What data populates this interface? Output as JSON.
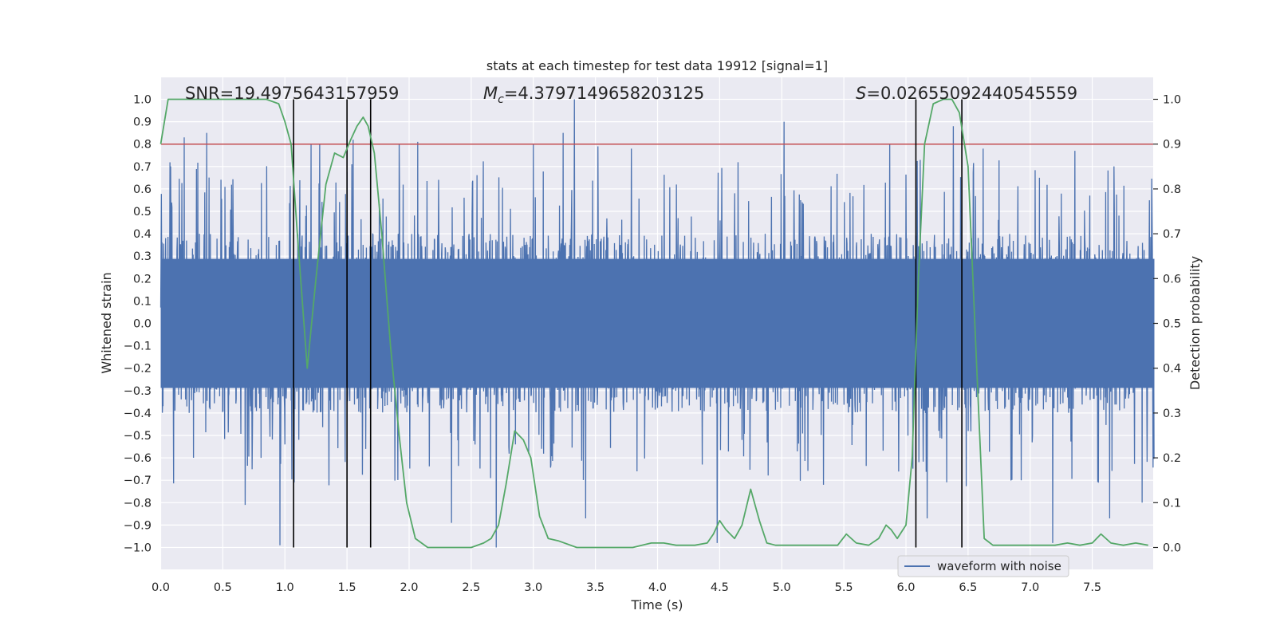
{
  "chart_data": {
    "type": "line",
    "title": "stats at each timestep for test data 19912 [signal=1]",
    "xlabel": "Time (s)",
    "ylabel": "Whitened strain",
    "ylabel_right": "Detection probability",
    "xlim": [
      0,
      8
    ],
    "ylim": [
      -1.1,
      1.1
    ],
    "ylim_right": [
      -0.04,
      1.04
    ],
    "x_ticks": [
      "0.0",
      "0.5",
      "1.0",
      "1.5",
      "2.0",
      "2.5",
      "3.0",
      "3.5",
      "4.0",
      "4.5",
      "5.0",
      "5.5",
      "6.0",
      "6.5",
      "7.0",
      "7.5"
    ],
    "x_tick_values": [
      0,
      0.5,
      1,
      1.5,
      2,
      2.5,
      3,
      3.5,
      4,
      4.5,
      5,
      5.5,
      6,
      6.5,
      7,
      7.5
    ],
    "y_ticks": [
      "1.0",
      "0.9",
      "0.8",
      "0.7",
      "0.6",
      "0.5",
      "0.4",
      "0.3",
      "0.2",
      "0.1",
      "0.0",
      "−0.1",
      "−0.2",
      "−0.3",
      "−0.4",
      "−0.5",
      "−0.6",
      "−0.7",
      "−0.8",
      "−0.9",
      "−1.0"
    ],
    "y_tick_values": [
      1,
      0.9,
      0.8,
      0.7,
      0.6,
      0.5,
      0.4,
      0.3,
      0.2,
      0.1,
      0,
      -0.1,
      -0.2,
      -0.3,
      -0.4,
      -0.5,
      -0.6,
      -0.7,
      -0.8,
      -0.9,
      -1
    ],
    "y_ticks_right": [
      "1.0",
      "0.9",
      "0.8",
      "0.7",
      "0.6",
      "0.5",
      "0.4",
      "0.3",
      "0.2",
      "0.1",
      "0.0"
    ],
    "y_tick_values_right": [
      1,
      0.9,
      0.8,
      0.7,
      0.6,
      0.5,
      0.4,
      0.3,
      0.2,
      0.1,
      0
    ],
    "annotations": {
      "snr": "SNR=19.4975643157959",
      "mc_symbol": "M",
      "mc_subscript": "c",
      "mc_value": "=4.3797149658203125",
      "s_symbol": "S",
      "s_value": "=0.02655092440545559"
    },
    "threshold_line": {
      "y_right": 0.9,
      "color": "#c44e52"
    },
    "vertical_lines_x": [
      1.07,
      1.5,
      1.69,
      6.08,
      6.45
    ],
    "legend": {
      "label": "waveform with noise",
      "placement": "lower right"
    },
    "series": [
      {
        "name": "waveform with noise",
        "axis": "left",
        "color": "#4c72b0",
        "envelope_approx": {
          "bulk_amplitude": 0.4,
          "peak_high": 1.0,
          "peak_low": -1.0,
          "max_peaks": [
            [
              0.19,
              0.83
            ],
            [
              0.37,
              0.85
            ],
            [
              1.21,
              0.8
            ],
            [
              1.28,
              0.8
            ],
            [
              1.55,
              0.82
            ],
            [
              1.92,
              0.8
            ],
            [
              2.07,
              0.81
            ],
            [
              3.0,
              0.8
            ],
            [
              3.24,
              0.85
            ],
            [
              3.33,
              1.0
            ],
            [
              3.52,
              0.79
            ],
            [
              3.79,
              0.78
            ],
            [
              4.48,
              0.84
            ],
            [
              5.02,
              0.9
            ],
            [
              5.87,
              0.8
            ],
            [
              6.38,
              0.88
            ],
            [
              6.62,
              0.78
            ],
            [
              7.36,
              0.77
            ],
            [
              7.9,
              0.73
            ]
          ],
          "min_peaks": [
            [
              0.96,
              -0.99
            ],
            [
              0.68,
              -0.81
            ],
            [
              2.34,
              -0.89
            ],
            [
              2.7,
              -1.0
            ],
            [
              3.42,
              -0.87
            ],
            [
              4.48,
              -0.98
            ],
            [
              6.17,
              -0.87
            ],
            [
              7.18,
              -0.98
            ],
            [
              7.64,
              -0.87
            ],
            [
              7.9,
              -0.8
            ]
          ]
        }
      },
      {
        "name": "",
        "axis": "right",
        "color": "#55a868",
        "x": [
          0.0,
          0.06,
          0.15,
          0.3,
          0.5,
          0.7,
          0.85,
          0.95,
          1.0,
          1.05,
          1.1,
          1.18,
          1.25,
          1.33,
          1.4,
          1.47,
          1.53,
          1.58,
          1.63,
          1.67,
          1.72,
          1.78,
          1.85,
          1.92,
          1.98,
          2.05,
          2.15,
          2.3,
          2.5,
          2.6,
          2.66,
          2.72,
          2.78,
          2.85,
          2.92,
          2.98,
          3.05,
          3.12,
          3.2,
          3.35,
          3.6,
          3.8,
          3.95,
          4.05,
          4.15,
          4.3,
          4.4,
          4.45,
          4.5,
          4.55,
          4.62,
          4.68,
          4.75,
          4.82,
          4.88,
          4.95,
          5.1,
          5.3,
          5.45,
          5.52,
          5.6,
          5.7,
          5.78,
          5.84,
          5.88,
          5.93,
          6.0,
          6.05,
          6.1,
          6.15,
          6.22,
          6.3,
          6.37,
          6.43,
          6.5,
          6.57,
          6.63,
          6.7,
          6.8,
          7.0,
          7.2,
          7.3,
          7.4,
          7.5,
          7.57,
          7.65,
          7.75,
          7.85,
          7.95
        ],
        "y": [
          0.9,
          1.0,
          1.0,
          1.0,
          1.0,
          1.0,
          1.0,
          0.99,
          0.95,
          0.9,
          0.7,
          0.4,
          0.6,
          0.81,
          0.88,
          0.87,
          0.91,
          0.94,
          0.96,
          0.94,
          0.88,
          0.7,
          0.45,
          0.25,
          0.1,
          0.02,
          0.0,
          0.0,
          0.0,
          0.01,
          0.02,
          0.05,
          0.14,
          0.26,
          0.24,
          0.2,
          0.07,
          0.02,
          0.015,
          0.0,
          0.0,
          0.0,
          0.01,
          0.01,
          0.005,
          0.005,
          0.01,
          0.03,
          0.06,
          0.04,
          0.02,
          0.05,
          0.13,
          0.06,
          0.01,
          0.005,
          0.005,
          0.005,
          0.005,
          0.03,
          0.01,
          0.005,
          0.02,
          0.05,
          0.04,
          0.02,
          0.05,
          0.2,
          0.6,
          0.9,
          0.99,
          1.0,
          1.0,
          0.97,
          0.85,
          0.4,
          0.02,
          0.005,
          0.005,
          0.005,
          0.005,
          0.01,
          0.005,
          0.01,
          0.03,
          0.01,
          0.005,
          0.01,
          0.005
        ]
      }
    ]
  }
}
